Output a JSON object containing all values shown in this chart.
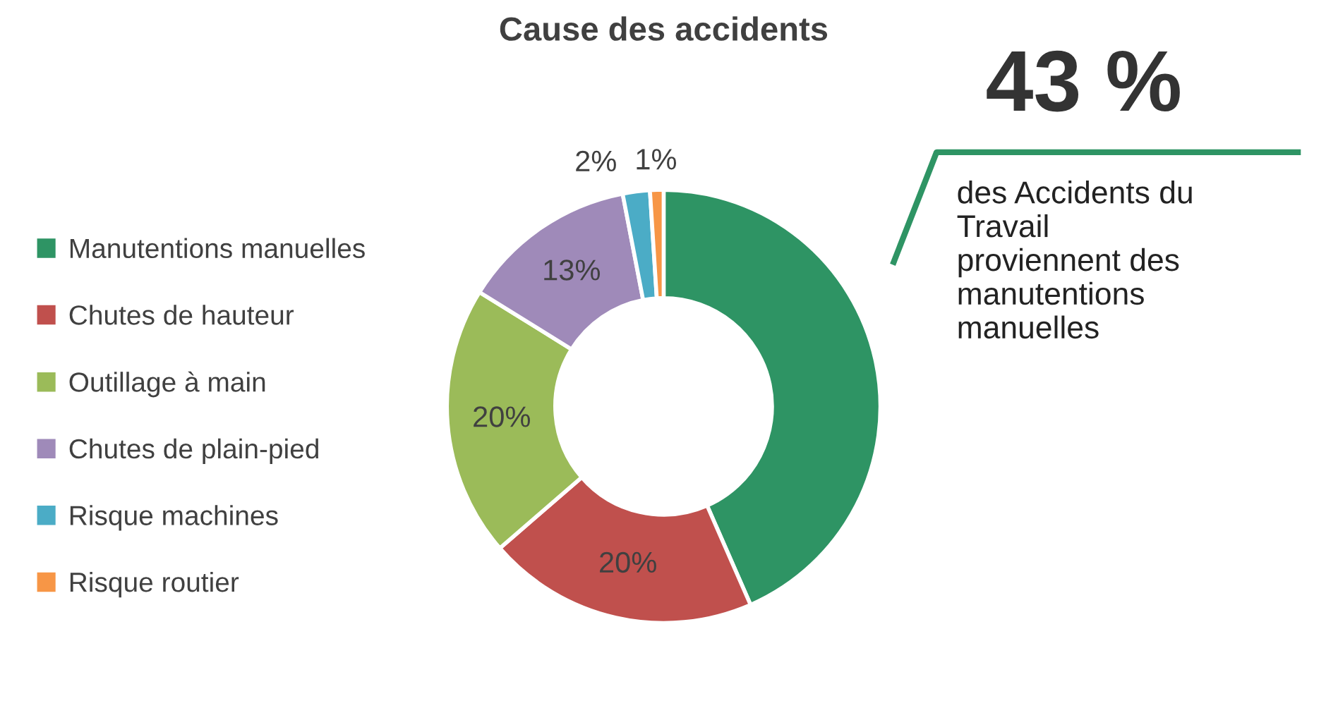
{
  "chart_data": {
    "type": "donut",
    "title": "Cause des accidents",
    "categories": [
      "Manutentions manuelles",
      "Chutes de hauteur",
      "Outillage à main",
      "Chutes de plain-pied",
      "Risque machines",
      "Risque routier"
    ],
    "values": [
      43,
      20,
      20,
      13,
      2,
      1
    ],
    "colors": [
      "#2e9464",
      "#c0504d",
      "#9bbb59",
      "#9f8ab9",
      "#4bacc6",
      "#f79646"
    ],
    "value_labels": [
      null,
      "20%",
      "20%",
      "13%",
      "2%",
      "1%"
    ],
    "legend": "left",
    "annotations": [
      "43 %",
      "des Accidents du\nTravail\nproviennent des\nmanutentions\nmanuelles"
    ]
  }
}
